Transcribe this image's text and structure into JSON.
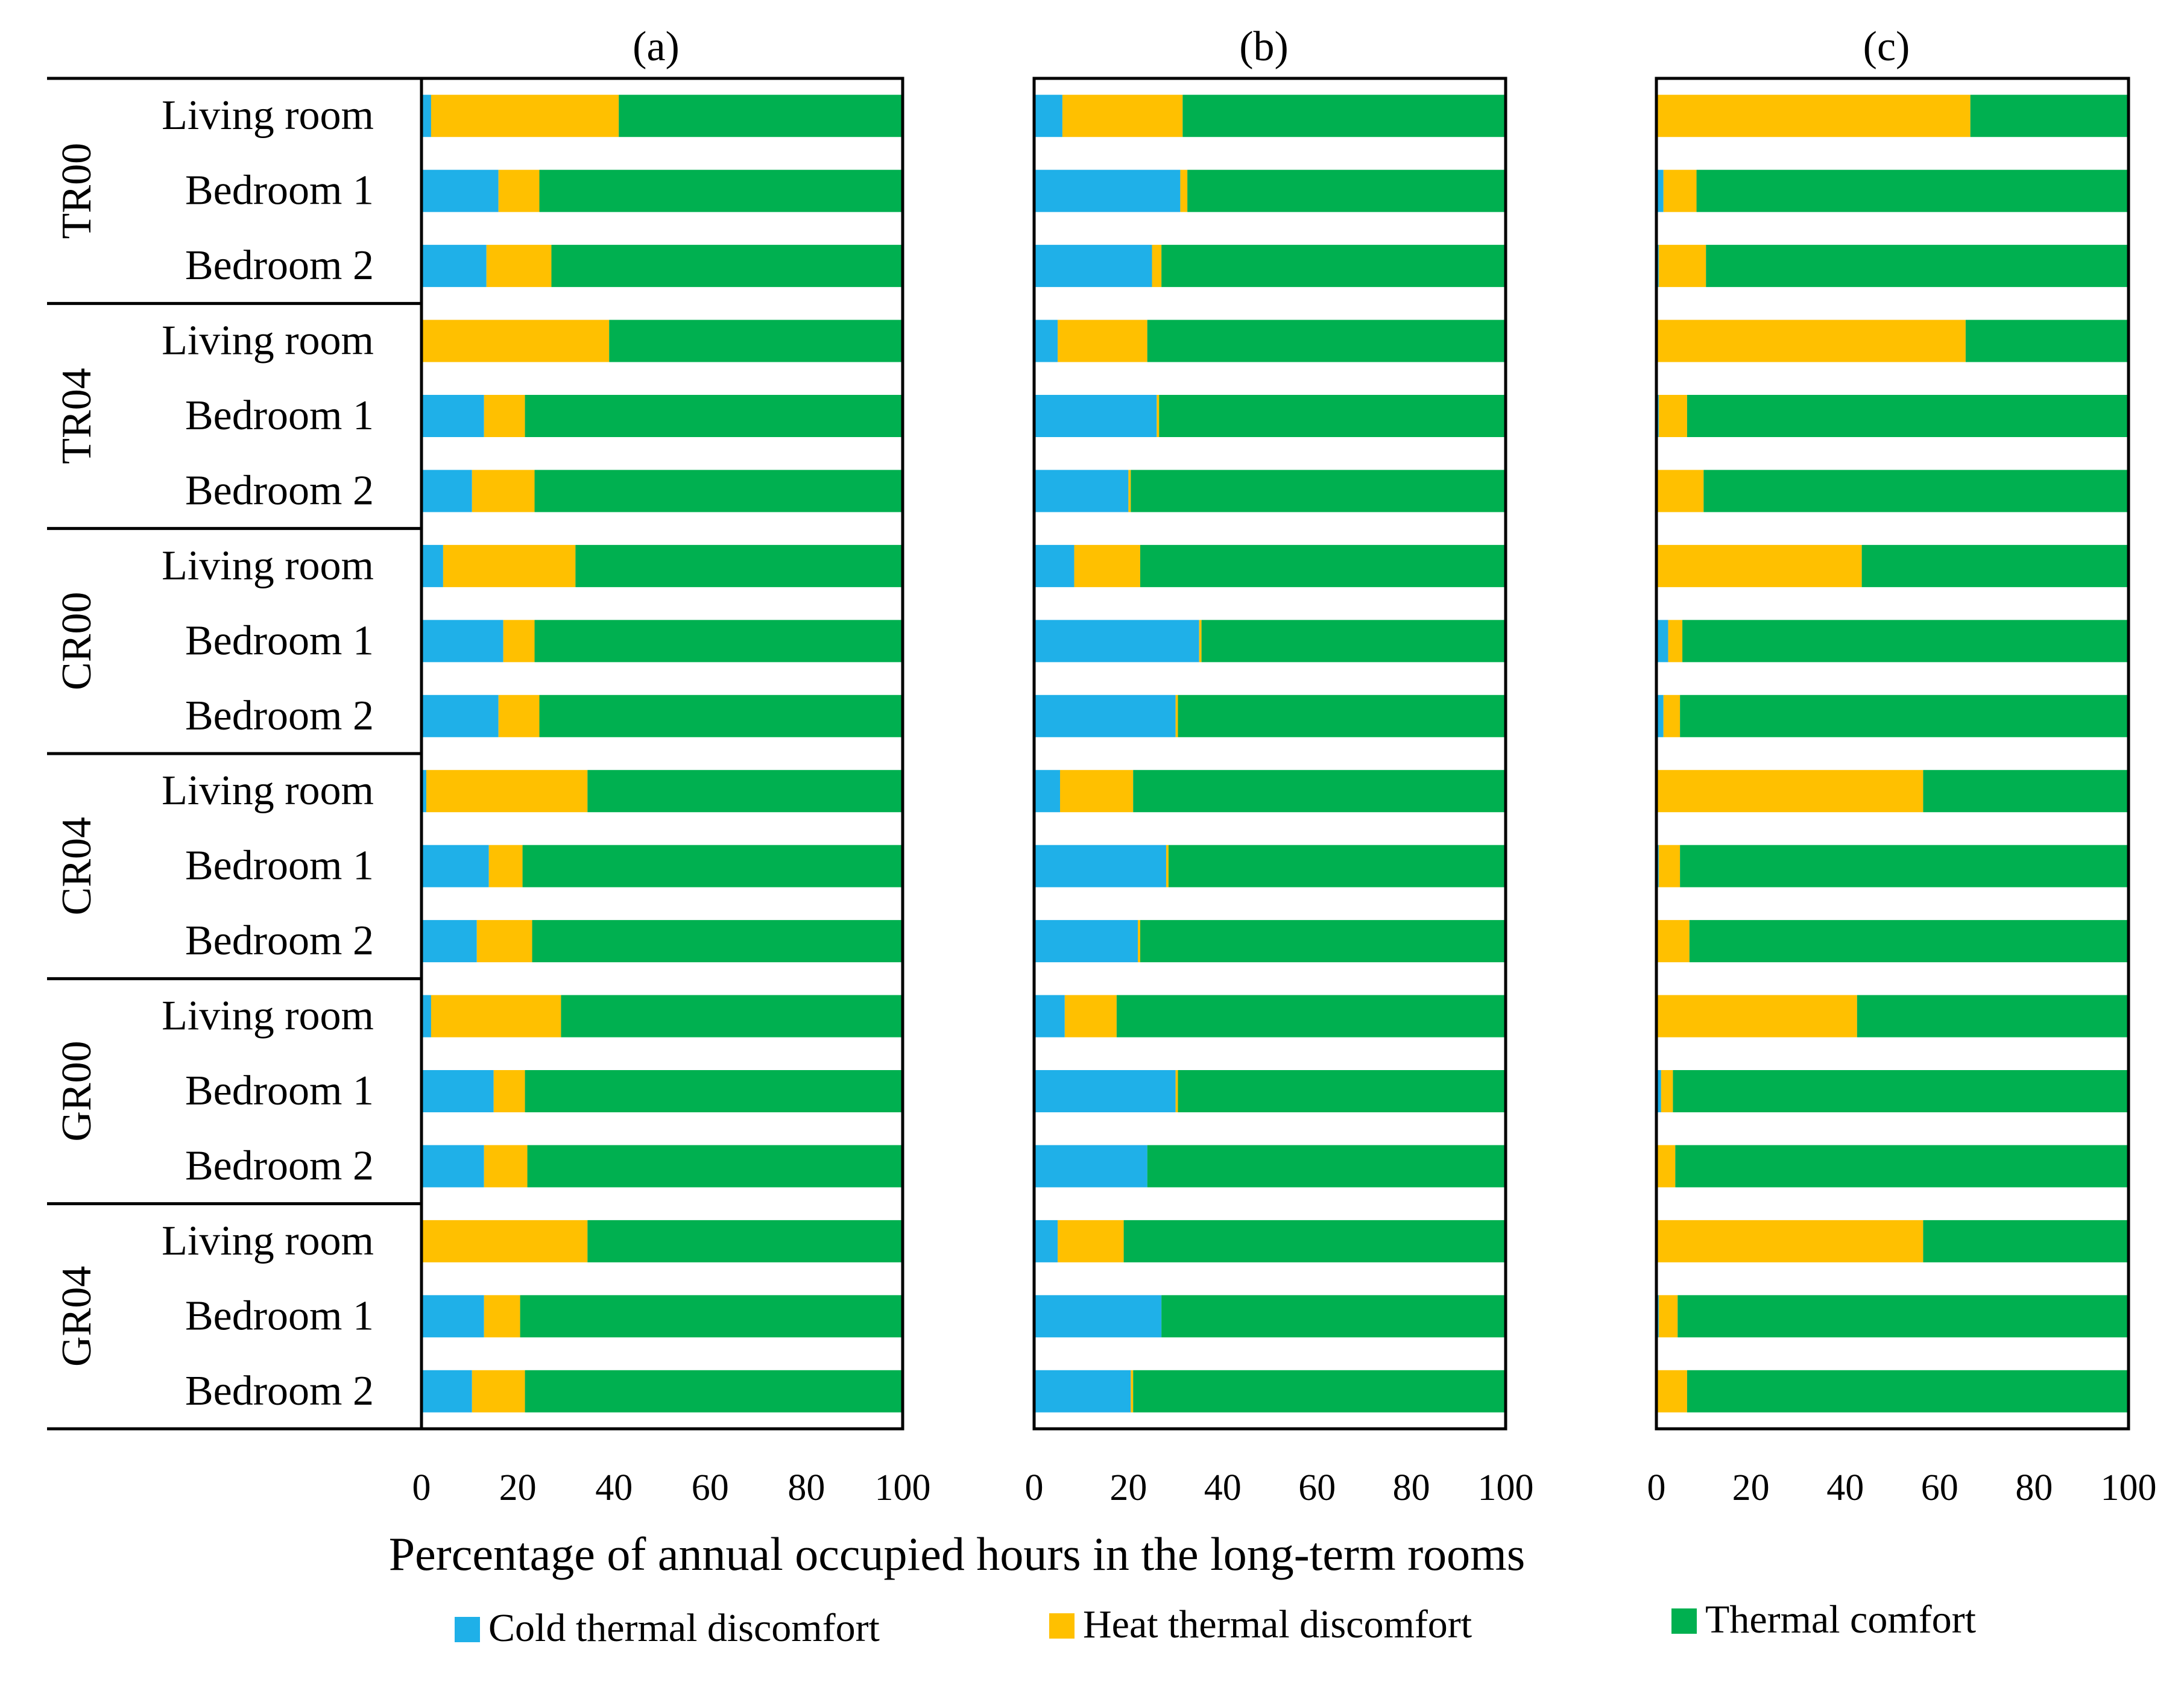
{
  "chart_data": {
    "type": "bar",
    "stacked": true,
    "orientation": "horizontal",
    "xlabel": "Percentage of annual occupied hours in the long-term rooms",
    "xlim": [
      0,
      100
    ],
    "xticks": [
      "0",
      "20",
      "40",
      "60",
      "80",
      "100"
    ],
    "group_labels": [
      "TR00",
      "TR04",
      "CR00",
      "CR04",
      "GR00",
      "GR04"
    ],
    "room_labels": [
      "Living room",
      "Bedroom 1",
      "Bedroom 2"
    ],
    "series_names": [
      "Cold thermal discomfort",
      "Heat thermal discomfort",
      "Thermal comfort"
    ],
    "colors": {
      "cold": "#1fb0e8",
      "heat": "#ffc000",
      "comfort": "#00b050"
    },
    "panels": [
      {
        "label": "(a)",
        "cold": [
          2,
          16,
          13.5,
          0,
          13,
          10.5,
          4.5,
          17,
          16,
          1,
          14,
          11.5,
          2,
          15,
          13,
          0,
          13,
          10.5
        ],
        "heat": [
          39,
          8.5,
          13.5,
          39,
          8.5,
          13,
          27.5,
          6.5,
          8.5,
          33.5,
          7,
          11.5,
          27,
          6.5,
          9,
          34.5,
          7.5,
          11
        ]
      },
      {
        "label": "(b)",
        "cold": [
          6,
          31,
          25,
          5,
          26,
          20,
          8.5,
          35,
          30,
          5.5,
          28,
          22,
          6.5,
          30,
          24,
          5,
          27,
          20.5
        ],
        "heat": [
          25.5,
          1.5,
          2,
          19,
          0.5,
          0.5,
          14,
          0.5,
          0.5,
          15.5,
          0.5,
          0.5,
          11,
          0.5,
          0,
          14,
          0,
          0.5
        ]
      },
      {
        "label": "(c)",
        "cold": [
          0,
          1.5,
          0.5,
          0,
          0.5,
          0,
          0,
          2.5,
          1.5,
          0,
          0.5,
          0,
          0,
          1,
          0,
          0,
          0.5,
          0
        ],
        "heat": [
          66.5,
          7,
          10,
          65.5,
          6,
          10,
          43.5,
          3,
          3.5,
          56.5,
          4.5,
          7,
          42.5,
          2.5,
          4,
          56.5,
          4,
          6.5
        ]
      }
    ],
    "legend_position": "bottom"
  }
}
